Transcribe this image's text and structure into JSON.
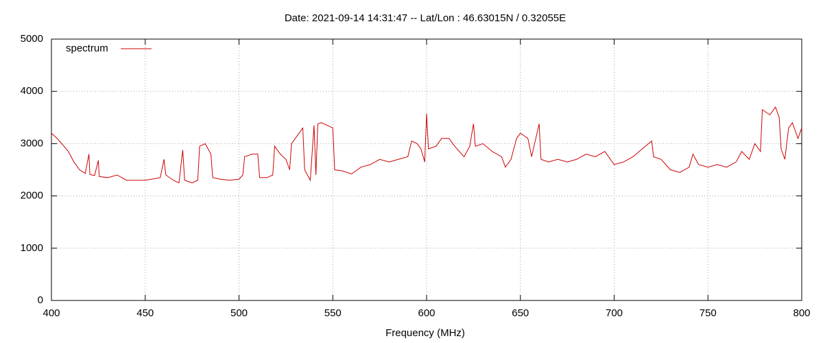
{
  "chart_data": {
    "type": "line",
    "title": "Date: 2021-09-14 14:31:47  --  Lat/Lon : 46.63015N / 0.32055E",
    "x_label": "Frequency (MHz)",
    "xlim": [
      400,
      800
    ],
    "xticks": [
      400,
      450,
      500,
      550,
      600,
      650,
      700,
      750,
      800
    ],
    "ylim": [
      0,
      5000
    ],
    "yticks": [
      0,
      1000,
      2000,
      3000,
      4000,
      5000
    ],
    "grid": true,
    "legend": "upper-left",
    "x": [
      400,
      403,
      406,
      409,
      412,
      415,
      418,
      420,
      420.5,
      423,
      425,
      425.5,
      430,
      435,
      440,
      445,
      450,
      455,
      458,
      460,
      461,
      465,
      468,
      470,
      471,
      475,
      478,
      479,
      482,
      485,
      486,
      490,
      495,
      500,
      502,
      503,
      507,
      510,
      511,
      515,
      518,
      519,
      522,
      525,
      527,
      528,
      532,
      534,
      535,
      538,
      540,
      541,
      542,
      544,
      547,
      550,
      551,
      555,
      560,
      565,
      570,
      575,
      580,
      585,
      590,
      592,
      595,
      597,
      599,
      600,
      601,
      605,
      608,
      612,
      615,
      620,
      623,
      625,
      626,
      630,
      635,
      640,
      642,
      645,
      648,
      650,
      654,
      656,
      660,
      661,
      665,
      670,
      675,
      680,
      685,
      690,
      695,
      700,
      705,
      710,
      715,
      720,
      721,
      725,
      730,
      735,
      740,
      742,
      745,
      750,
      755,
      760,
      765,
      768,
      772,
      775,
      778,
      779,
      783,
      786,
      788,
      789,
      791,
      793,
      795,
      798,
      800
    ],
    "series": [
      {
        "name": "spectrum",
        "color": "#cc0000",
        "values": [
          3200,
          3100,
          2980,
          2850,
          2650,
          2500,
          2430,
          2800,
          2410,
          2390,
          2680,
          2370,
          2350,
          2400,
          2300,
          2300,
          2300,
          2330,
          2350,
          2700,
          2400,
          2300,
          2250,
          2880,
          2300,
          2250,
          2300,
          2950,
          3000,
          2800,
          2350,
          2320,
          2300,
          2320,
          2400,
          2750,
          2800,
          2800,
          2350,
          2350,
          2400,
          2950,
          2800,
          2700,
          2500,
          3000,
          3200,
          3300,
          2500,
          2300,
          3350,
          2400,
          3380,
          3400,
          3350,
          3300,
          2500,
          2480,
          2420,
          2550,
          2600,
          2700,
          2650,
          2700,
          2750,
          3050,
          3000,
          2900,
          2650,
          3570,
          2900,
          2950,
          3100,
          3100,
          2950,
          2750,
          2950,
          3380,
          2950,
          3000,
          2850,
          2750,
          2550,
          2700,
          3100,
          3200,
          3100,
          2750,
          3380,
          2700,
          2650,
          2700,
          2650,
          2700,
          2800,
          2750,
          2850,
          2600,
          2650,
          2750,
          2900,
          3050,
          2750,
          2700,
          2500,
          2450,
          2550,
          2800,
          2600,
          2550,
          2600,
          2550,
          2650,
          2850,
          2700,
          3000,
          2850,
          3650,
          3550,
          3700,
          3500,
          2900,
          2700,
          3300,
          3400,
          3100,
          3300
        ]
      }
    ]
  }
}
